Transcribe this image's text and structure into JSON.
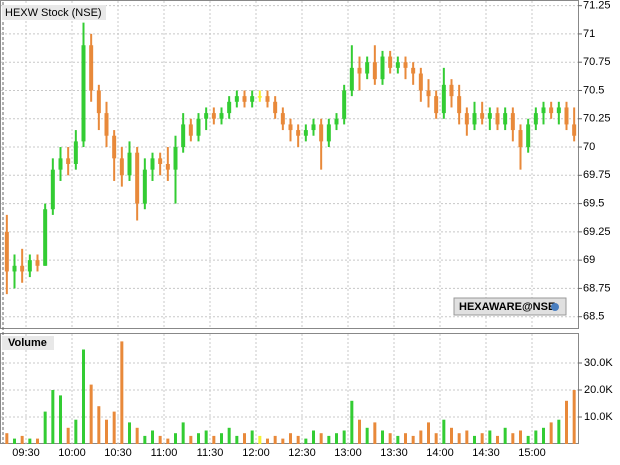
{
  "chart_data": {
    "type": "ohlc",
    "title": "HEXW Stock (NSE)",
    "watermark": "HEXAWARE@NSE",
    "volume_title": "Volume",
    "x": [
      "09:15",
      "09:20",
      "09:25",
      "09:30",
      "09:35",
      "09:40",
      "09:45",
      "09:50",
      "09:55",
      "10:00",
      "10:05",
      "10:10",
      "10:15",
      "10:20",
      "10:25",
      "10:30",
      "10:35",
      "10:40",
      "10:45",
      "10:50",
      "10:55",
      "11:00",
      "11:05",
      "11:10",
      "11:15",
      "11:20",
      "11:25",
      "11:30",
      "11:35",
      "11:40",
      "11:45",
      "11:50",
      "11:55",
      "12:00",
      "12:05",
      "12:10",
      "12:15",
      "12:20",
      "12:25",
      "12:30",
      "12:35",
      "12:40",
      "12:45",
      "12:50",
      "12:55",
      "13:00",
      "13:05",
      "13:10",
      "13:15",
      "13:20",
      "13:25",
      "13:30",
      "13:35",
      "13:40",
      "13:45",
      "13:50",
      "13:55",
      "14:00",
      "14:05",
      "14:10",
      "14:15",
      "14:20",
      "14:25",
      "14:30",
      "14:35",
      "14:40",
      "14:45",
      "14:50",
      "14:55",
      "15:00",
      "15:05",
      "15:10",
      "15:15",
      "15:20",
      "15:25"
    ],
    "open": [
      69.25,
      68.9,
      68.95,
      68.9,
      69.0,
      68.95,
      69.45,
      69.8,
      69.9,
      69.85,
      70.05,
      70.9,
      70.5,
      70.3,
      70.1,
      69.9,
      69.75,
      69.95,
      69.5,
      69.8,
      69.9,
      69.85,
      69.8,
      70.0,
      70.2,
      70.1,
      70.25,
      70.3,
      70.25,
      70.3,
      70.4,
      70.45,
      70.4,
      70.45,
      70.45,
      70.4,
      70.3,
      70.2,
      70.15,
      70.1,
      70.15,
      70.2,
      70.05,
      70.2,
      70.25,
      70.5,
      70.7,
      70.65,
      70.75,
      70.6,
      70.8,
      70.7,
      70.75,
      70.7,
      70.65,
      70.5,
      70.45,
      70.3,
      70.55,
      70.45,
      70.3,
      70.2,
      70.3,
      70.25,
      70.3,
      70.2,
      70.3,
      70.15,
      70.0,
      70.2,
      70.3,
      70.35,
      70.3,
      70.35,
      70.2
    ],
    "high": [
      69.4,
      69.05,
      69.1,
      69.05,
      69.05,
      69.5,
      69.9,
      70.0,
      70.0,
      70.15,
      71.1,
      71.0,
      70.55,
      70.4,
      70.15,
      70.0,
      70.05,
      70.0,
      69.9,
      69.95,
      69.95,
      70.0,
      70.1,
      70.3,
      70.25,
      70.3,
      70.35,
      70.35,
      70.35,
      70.45,
      70.5,
      70.5,
      70.5,
      70.5,
      70.5,
      70.45,
      70.35,
      70.25,
      70.2,
      70.2,
      70.25,
      70.25,
      70.25,
      70.3,
      70.55,
      70.9,
      70.8,
      70.8,
      70.9,
      70.85,
      70.85,
      70.8,
      70.8,
      70.75,
      70.7,
      70.6,
      70.5,
      70.7,
      70.6,
      70.55,
      70.35,
      70.4,
      70.4,
      70.35,
      70.35,
      70.35,
      70.35,
      70.2,
      70.25,
      70.35,
      70.4,
      70.4,
      70.4,
      70.4,
      70.35
    ],
    "low": [
      68.7,
      68.75,
      68.8,
      68.85,
      68.9,
      68.95,
      69.4,
      69.7,
      69.75,
      69.8,
      70.0,
      70.4,
      70.15,
      70.0,
      69.7,
      69.65,
      69.7,
      69.35,
      69.45,
      69.7,
      69.75,
      69.7,
      69.5,
      69.95,
      70.05,
      70.05,
      70.15,
      70.2,
      70.2,
      70.25,
      70.35,
      70.35,
      70.35,
      70.4,
      70.35,
      70.25,
      70.15,
      70.05,
      70.0,
      70.05,
      70.1,
      69.8,
      70.0,
      70.15,
      70.2,
      70.45,
      70.5,
      70.6,
      70.55,
      70.55,
      70.65,
      70.65,
      70.6,
      70.55,
      70.4,
      70.35,
      70.25,
      70.25,
      70.35,
      70.2,
      70.1,
      70.15,
      70.2,
      70.15,
      70.15,
      70.15,
      70.05,
      69.8,
      69.95,
      70.15,
      70.2,
      70.25,
      70.2,
      70.15,
      70.05
    ],
    "close": [
      68.9,
      68.95,
      68.9,
      69.0,
      68.95,
      69.45,
      69.8,
      69.9,
      69.85,
      70.05,
      70.9,
      70.5,
      70.3,
      70.1,
      69.9,
      69.75,
      69.95,
      69.5,
      69.8,
      69.9,
      69.85,
      69.8,
      70.0,
      70.2,
      70.1,
      70.25,
      70.3,
      70.25,
      70.3,
      70.4,
      70.45,
      70.4,
      70.45,
      70.45,
      70.4,
      70.3,
      70.2,
      70.15,
      70.1,
      70.15,
      70.2,
      70.05,
      70.2,
      70.25,
      70.5,
      70.7,
      70.65,
      70.75,
      70.6,
      70.8,
      70.7,
      70.75,
      70.7,
      70.65,
      70.5,
      70.45,
      70.3,
      70.55,
      70.45,
      70.3,
      70.2,
      70.3,
      70.25,
      70.3,
      70.2,
      70.3,
      70.15,
      70.0,
      70.2,
      70.3,
      70.35,
      70.3,
      70.35,
      70.2,
      70.1
    ],
    "volume": [
      4000,
      2000,
      3000,
      2000,
      2000,
      12000,
      20000,
      18000,
      6000,
      9000,
      35000,
      22000,
      14000,
      9000,
      12000,
      38000,
      8000,
      6000,
      3000,
      5000,
      3000,
      2000,
      4000,
      8000,
      3000,
      4000,
      5000,
      3000,
      4000,
      6000,
      3000,
      4000,
      5000,
      3000,
      2000,
      3000,
      2000,
      4000,
      3000,
      2000,
      5000,
      4000,
      3000,
      4000,
      5000,
      16000,
      9000,
      6000,
      8000,
      5000,
      4000,
      3000,
      4000,
      3000,
      5000,
      8000,
      4000,
      9000,
      6000,
      4000,
      5000,
      3000,
      4000,
      5000,
      3000,
      6000,
      4000,
      5000,
      3000,
      5000,
      6000,
      8000,
      9000,
      16000,
      20000
    ],
    "up_color": "#33cc33",
    "down_color": "#e8893a",
    "flat_color": "#f2f233",
    "xticks": [
      "09:30",
      "10:00",
      "10:30",
      "11:00",
      "11:30",
      "12:00",
      "12:30",
      "13:00",
      "13:30",
      "14:00",
      "14:30",
      "15:00"
    ],
    "ylim": [
      68.4,
      71.3
    ],
    "yticks": [
      68.5,
      68.75,
      69.0,
      69.25,
      69.5,
      69.75,
      70.0,
      70.25,
      70.5,
      70.75,
      71.0,
      71.25
    ],
    "y2lim": [
      0,
      40000
    ],
    "y2ticks": [
      {
        "value": 10000,
        "label": "10.0K"
      },
      {
        "value": 20000,
        "label": "20.0K"
      },
      {
        "value": 30000,
        "label": "30.0K"
      }
    ],
    "grid": true
  }
}
